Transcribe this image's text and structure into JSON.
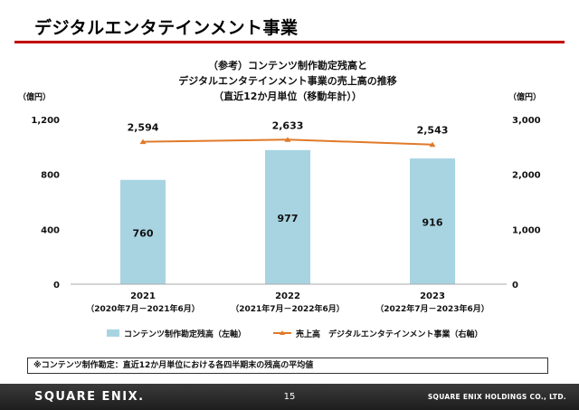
{
  "page": {
    "title": "デジタルエンタテインメント事業",
    "footnote": "※コンテンツ制作勘定：直近12か月単位における各四半期末の残高の平均値",
    "page_number": "15",
    "logo": "SQUARE ENIX.",
    "company": "SQUARE ENIX HOLDINGS CO., LTD.",
    "colors": {
      "accent": "#c00000",
      "bar": "#a8d4e2",
      "line": "#e07a2a"
    }
  },
  "chart_data": {
    "type": "bar",
    "title_lines": [
      "（参考）コンテンツ制作勘定残高と",
      "デジタルエンタテインメント事業の売上高の推移",
      "（直近12か月単位（移動年計））"
    ],
    "left_unit": "（億円）",
    "right_unit": "（億円）",
    "left_axis": {
      "ylim": [
        0,
        1200
      ],
      "ticks": [
        "0",
        "400",
        "800",
        "1,200"
      ],
      "tick_values": [
        0,
        400,
        800,
        1200
      ]
    },
    "right_axis": {
      "ylim": [
        0,
        3000
      ],
      "ticks": [
        "0",
        "1,000",
        "2,000",
        "3,000"
      ],
      "tick_values": [
        0,
        1000,
        2000,
        3000
      ]
    },
    "categories": [
      "2021",
      "2022",
      "2023"
    ],
    "category_sublabels": [
      "（2020年7月－2021年6月）",
      "（2021年7月－2022年6月）",
      "（2022年7月－2023年6月）"
    ],
    "series": [
      {
        "name": "コンテンツ制作勘定残高（左軸）",
        "kind": "bar",
        "axis": "left",
        "values": [
          760,
          977,
          916
        ],
        "labels": [
          "760",
          "977",
          "916"
        ]
      },
      {
        "name": "売上高　デジタルエンタテインメント事業（右軸）",
        "kind": "line",
        "axis": "right",
        "values": [
          2594,
          2633,
          2543
        ],
        "labels": [
          "2,594",
          "2,633",
          "2,543"
        ]
      }
    ],
    "grid": false,
    "legend": "bottom"
  }
}
